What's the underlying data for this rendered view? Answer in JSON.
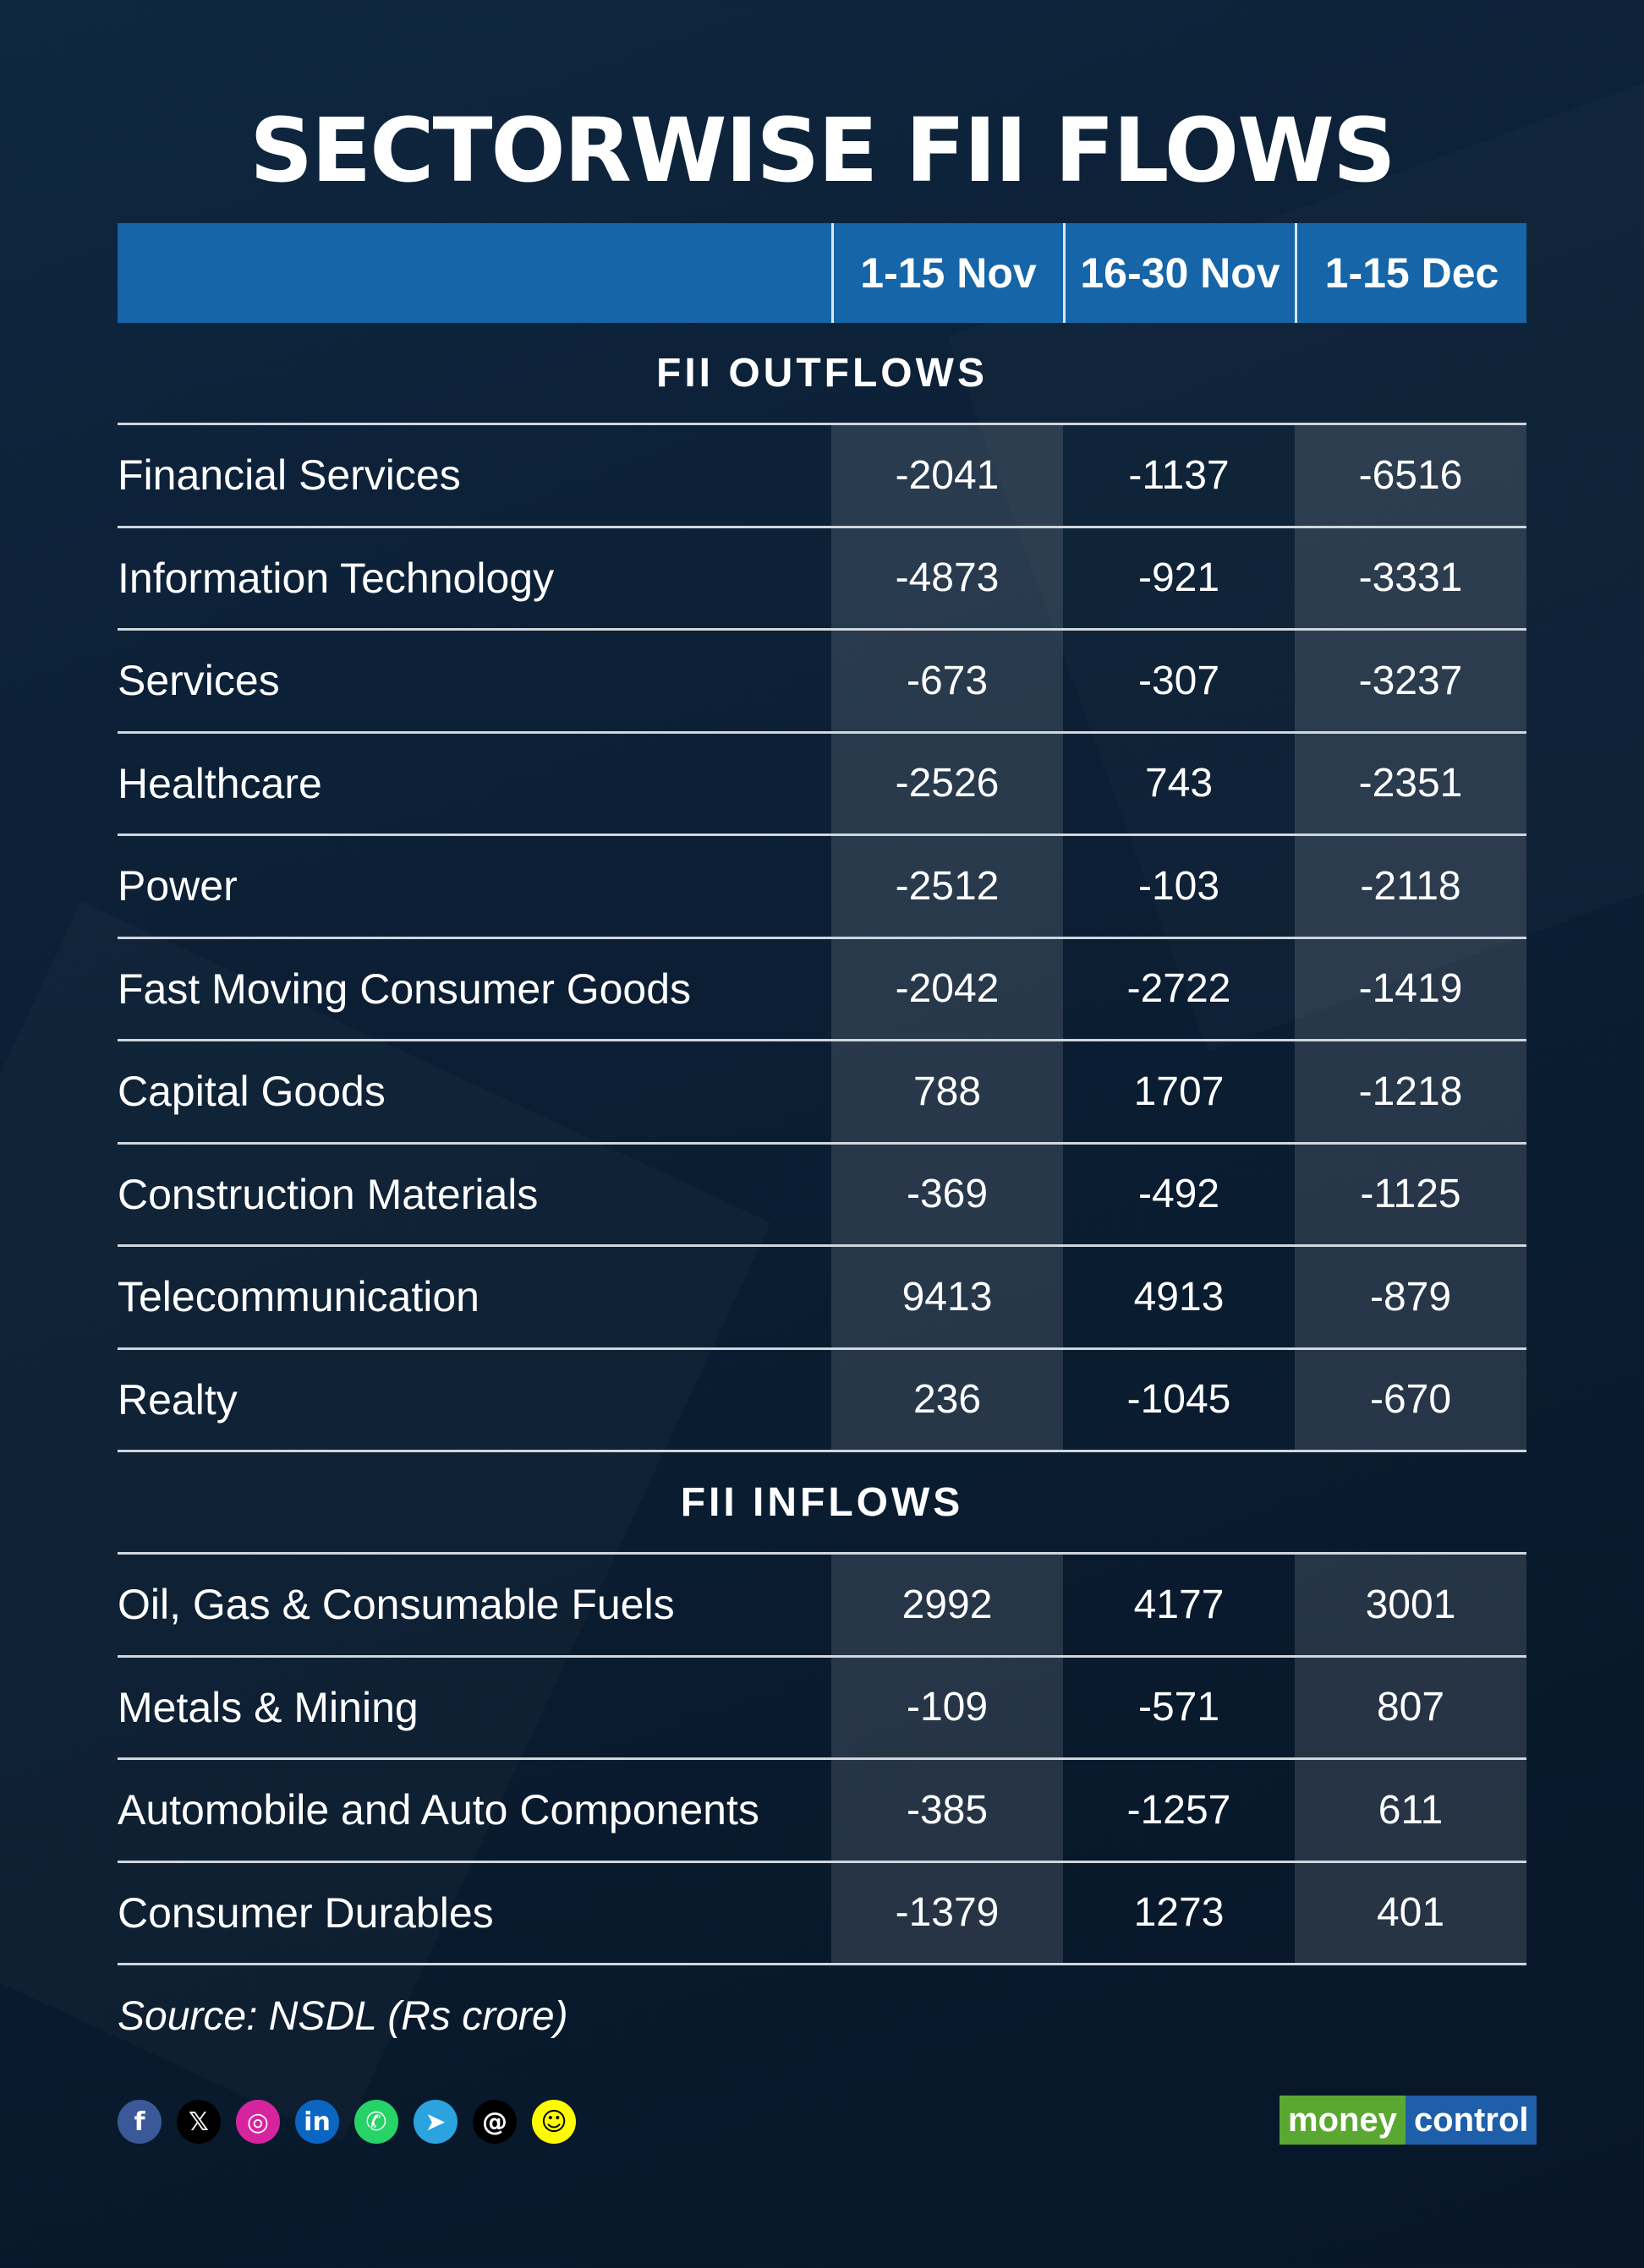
{
  "title": "SECTORWISE FII FLOWS",
  "chart_data": {
    "type": "table",
    "columns": [
      "1-15 Nov",
      "16-30 Nov",
      "1-15 Dec"
    ],
    "sections": [
      {
        "title": "FII OUTFLOWS",
        "rows": [
          {
            "label": "Financial Services",
            "values": [
              "-2041",
              "-1137",
              "-6516"
            ]
          },
          {
            "label": "Information Technology",
            "values": [
              "-4873",
              "-921",
              "-3331"
            ]
          },
          {
            "label": "Services",
            "values": [
              "-673",
              "-307",
              "-3237"
            ]
          },
          {
            "label": "Healthcare",
            "values": [
              "-2526",
              "743",
              "-2351"
            ]
          },
          {
            "label": "Power",
            "values": [
              "-2512",
              "-103",
              "-2118"
            ]
          },
          {
            "label": "Fast Moving Consumer Goods",
            "values": [
              "-2042",
              "-2722",
              "-1419"
            ]
          },
          {
            "label": "Capital Goods",
            "values": [
              "788",
              "1707",
              "-1218"
            ]
          },
          {
            "label": "Construction Materials",
            "values": [
              "-369",
              "-492",
              "-1125"
            ]
          },
          {
            "label": "Telecommunication",
            "values": [
              "9413",
              "4913",
              "-879"
            ]
          },
          {
            "label": "Realty",
            "values": [
              "236",
              "-1045",
              "-670"
            ]
          }
        ]
      },
      {
        "title": "FII INFLOWS",
        "rows": [
          {
            "label": "Oil, Gas & Consumable Fuels",
            "values": [
              "2992",
              "4177",
              "3001"
            ]
          },
          {
            "label": "Metals & Mining",
            "values": [
              "-109",
              "-571",
              "807"
            ]
          },
          {
            "label": "Automobile and Auto Components",
            "values": [
              "-385",
              "-1257",
              "611"
            ]
          },
          {
            "label": "Consumer Durables",
            "values": [
              "-1379",
              "1273",
              "401"
            ]
          }
        ]
      }
    ]
  },
  "source": "Source: NSDL (Rs crore)",
  "social_icons": [
    {
      "name": "facebook-icon",
      "glyph": "f",
      "color": "#3b5998"
    },
    {
      "name": "x-icon",
      "glyph": "𝕏",
      "color": "#000000"
    },
    {
      "name": "instagram-icon",
      "glyph": "◎",
      "color": "#d6249f"
    },
    {
      "name": "linkedin-icon",
      "glyph": "in",
      "color": "#0a66c2"
    },
    {
      "name": "whatsapp-icon",
      "glyph": "✆",
      "color": "#25d366"
    },
    {
      "name": "telegram-icon",
      "glyph": "➤",
      "color": "#2aa3df"
    },
    {
      "name": "threads-icon",
      "glyph": "@",
      "color": "#000000"
    },
    {
      "name": "snapchat-icon",
      "glyph": "☺",
      "color": "#fffc00"
    }
  ],
  "logo": {
    "part1": "money",
    "part2": "control"
  }
}
